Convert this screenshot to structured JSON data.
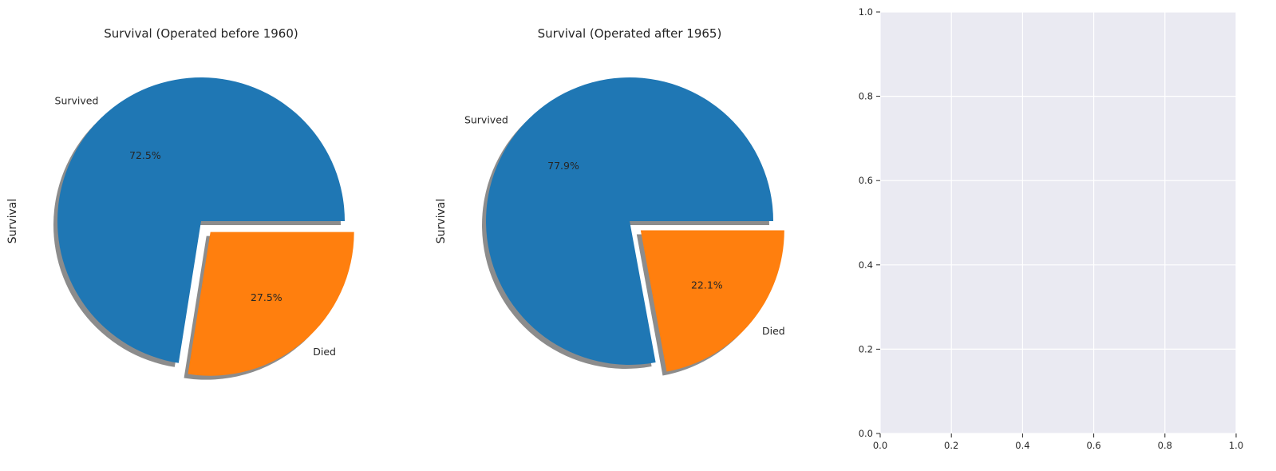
{
  "chart_data": [
    {
      "type": "pie",
      "title": "Survival (Operated before 1960)",
      "ylabel": "Survival",
      "labels": [
        "Survived",
        "Died"
      ],
      "values": [
        72.5,
        27.5
      ],
      "autopct": [
        "72.5%",
        "27.5%"
      ],
      "explode": [
        0,
        0.1
      ],
      "shadow": true,
      "colors": [
        "#1f77b4",
        "#ff7f0e"
      ]
    },
    {
      "type": "pie",
      "title": "Survival (Operated after 1965)",
      "ylabel": "Survival",
      "labels": [
        "Survived",
        "Died"
      ],
      "values": [
        77.9,
        22.1
      ],
      "autopct": [
        "77.9%",
        "22.1%"
      ],
      "explode": [
        0,
        0.1
      ],
      "shadow": true,
      "colors": [
        "#1f77b4",
        "#ff7f0e"
      ]
    },
    {
      "type": "scatter",
      "title": "",
      "xlim": [
        0.0,
        1.0
      ],
      "ylim": [
        0.0,
        1.0
      ],
      "xticks": [
        "0.0",
        "0.2",
        "0.4",
        "0.6",
        "0.8",
        "1.0"
      ],
      "yticks": [
        "0.0",
        "0.2",
        "0.4",
        "0.6",
        "0.8",
        "1.0"
      ],
      "grid": true,
      "background": "#eaeaf2",
      "series": []
    }
  ]
}
